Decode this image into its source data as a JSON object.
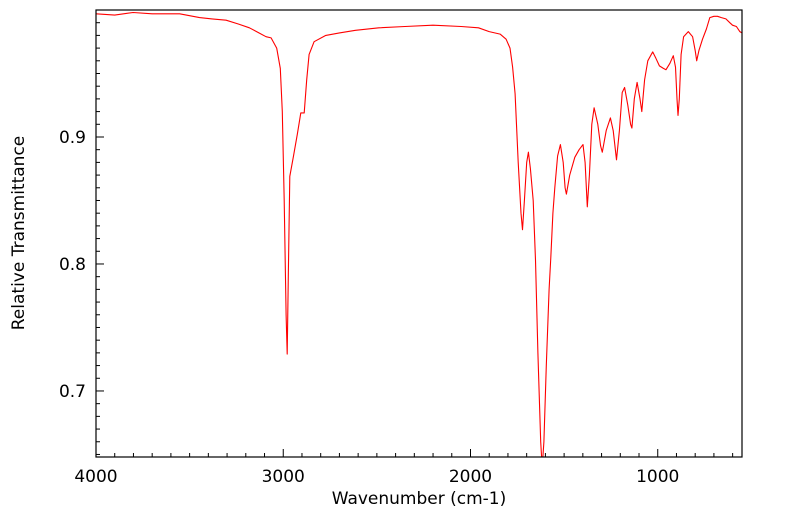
{
  "chart_data": {
    "type": "line",
    "title": "",
    "xlabel": "Wavenumber (cm-1)",
    "ylabel": "Relative Transmittance",
    "xlim": [
      4000,
      550
    ],
    "ylim": [
      0.648,
      1.0
    ],
    "x_ticks": [
      4000,
      3000,
      2000,
      1000
    ],
    "x_tick_labels": [
      "4000",
      "3000",
      "2000",
      "1000"
    ],
    "y_ticks": [
      0.7,
      0.8,
      0.9
    ],
    "y_tick_labels": [
      "0.7",
      "0.8",
      "0.9"
    ],
    "x_minor_step": 100,
    "y_minor_step": 0.01,
    "grid": false,
    "legend": "none",
    "series": [
      {
        "name": "spectrum",
        "color": "#ff0000",
        "points": [
          [
            4000,
            0.997
          ],
          [
            3900,
            0.996
          ],
          [
            3802,
            0.998
          ],
          [
            3700,
            0.997
          ],
          [
            3553,
            0.997
          ],
          [
            3447,
            0.994
          ],
          [
            3380,
            0.993
          ],
          [
            3305,
            0.992
          ],
          [
            3240,
            0.989
          ],
          [
            3181,
            0.986
          ],
          [
            3130,
            0.982
          ],
          [
            3092,
            0.979
          ],
          [
            3065,
            0.978
          ],
          [
            3035,
            0.97
          ],
          [
            3016,
            0.954
          ],
          [
            3005,
            0.92
          ],
          [
            2995,
            0.85
          ],
          [
            2985,
            0.76
          ],
          [
            2979,
            0.729
          ],
          [
            2973,
            0.79
          ],
          [
            2965,
            0.869
          ],
          [
            2945,
            0.885
          ],
          [
            2925,
            0.902
          ],
          [
            2906,
            0.919
          ],
          [
            2888,
            0.919
          ],
          [
            2875,
            0.945
          ],
          [
            2862,
            0.965
          ],
          [
            2835,
            0.975
          ],
          [
            2773,
            0.98
          ],
          [
            2700,
            0.982
          ],
          [
            2614,
            0.984
          ],
          [
            2489,
            0.986
          ],
          [
            2350,
            0.987
          ],
          [
            2200,
            0.988
          ],
          [
            2050,
            0.987
          ],
          [
            1957,
            0.986
          ],
          [
            1900,
            0.983
          ],
          [
            1842,
            0.981
          ],
          [
            1810,
            0.977
          ],
          [
            1789,
            0.97
          ],
          [
            1775,
            0.955
          ],
          [
            1762,
            0.934
          ],
          [
            1745,
            0.88
          ],
          [
            1730,
            0.84
          ],
          [
            1722,
            0.827
          ],
          [
            1712,
            0.85
          ],
          [
            1700,
            0.88
          ],
          [
            1691,
            0.888
          ],
          [
            1680,
            0.875
          ],
          [
            1665,
            0.85
          ],
          [
            1653,
            0.803
          ],
          [
            1640,
            0.73
          ],
          [
            1625,
            0.66
          ],
          [
            1617,
            0.64
          ],
          [
            1608,
            0.66
          ],
          [
            1595,
            0.72
          ],
          [
            1580,
            0.78
          ],
          [
            1571,
            0.805
          ],
          [
            1560,
            0.84
          ],
          [
            1550,
            0.86
          ],
          [
            1535,
            0.885
          ],
          [
            1520,
            0.894
          ],
          [
            1505,
            0.88
          ],
          [
            1495,
            0.86
          ],
          [
            1488,
            0.855
          ],
          [
            1470,
            0.87
          ],
          [
            1443,
            0.884
          ],
          [
            1420,
            0.89
          ],
          [
            1399,
            0.894
          ],
          [
            1388,
            0.88
          ],
          [
            1376,
            0.845
          ],
          [
            1365,
            0.87
          ],
          [
            1352,
            0.91
          ],
          [
            1340,
            0.923
          ],
          [
            1320,
            0.91
          ],
          [
            1305,
            0.893
          ],
          [
            1296,
            0.888
          ],
          [
            1275,
            0.905
          ],
          [
            1253,
            0.915
          ],
          [
            1238,
            0.905
          ],
          [
            1220,
            0.882
          ],
          [
            1205,
            0.905
          ],
          [
            1190,
            0.935
          ],
          [
            1177,
            0.939
          ],
          [
            1160,
            0.925
          ],
          [
            1145,
            0.91
          ],
          [
            1138,
            0.907
          ],
          [
            1125,
            0.93
          ],
          [
            1110,
            0.943
          ],
          [
            1095,
            0.93
          ],
          [
            1085,
            0.92
          ],
          [
            1070,
            0.945
          ],
          [
            1053,
            0.96
          ],
          [
            1027,
            0.967
          ],
          [
            1010,
            0.962
          ],
          [
            991,
            0.956
          ],
          [
            970,
            0.954
          ],
          [
            956,
            0.953
          ],
          [
            935,
            0.958
          ],
          [
            917,
            0.964
          ],
          [
            905,
            0.955
          ],
          [
            897,
            0.93
          ],
          [
            892,
            0.917
          ],
          [
            885,
            0.93
          ],
          [
            875,
            0.965
          ],
          [
            862,
            0.979
          ],
          [
            837,
            0.983
          ],
          [
            814,
            0.979
          ],
          [
            800,
            0.968
          ],
          [
            792,
            0.96
          ],
          [
            780,
            0.968
          ],
          [
            761,
            0.977
          ],
          [
            740,
            0.985
          ],
          [
            722,
            0.994
          ],
          [
            700,
            0.995
          ],
          [
            681,
            0.995
          ],
          [
            660,
            0.994
          ],
          [
            636,
            0.993
          ],
          [
            615,
            0.99
          ],
          [
            601,
            0.988
          ],
          [
            580,
            0.987
          ],
          [
            562,
            0.983
          ],
          [
            550,
            0.982
          ]
        ]
      }
    ]
  }
}
